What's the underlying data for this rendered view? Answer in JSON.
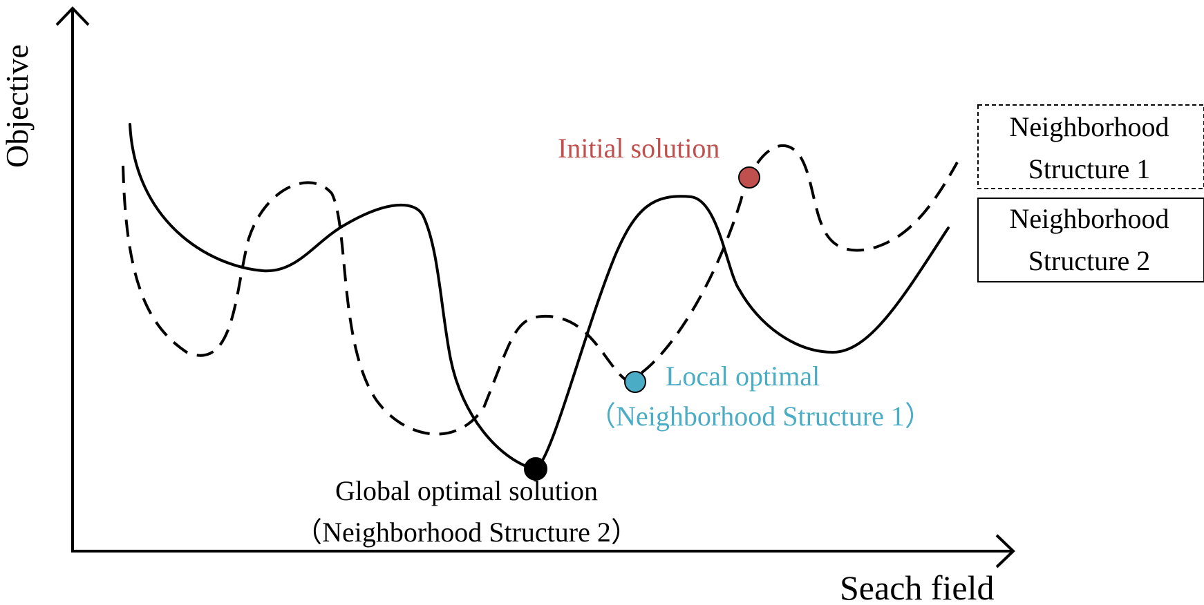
{
  "axes": {
    "y_label": "Objective",
    "x_label": "Seach field"
  },
  "labels": {
    "initial": "Initial solution",
    "local_line1": "Local optimal",
    "local_line2": "（Neighborhood Structure 1）",
    "global_line1": "Global optimal solution",
    "global_line2": "（Neighborhood Structure 2）"
  },
  "legend": {
    "ns1_line1": "Neighborhood",
    "ns1_line2": "Structure 1",
    "ns2_line1": "Neighborhood",
    "ns2_line2": "Structure 2"
  },
  "colors": {
    "initial": "#c0504d",
    "local": "#4bacc6",
    "global": "#000000",
    "ink": "#000000"
  }
}
